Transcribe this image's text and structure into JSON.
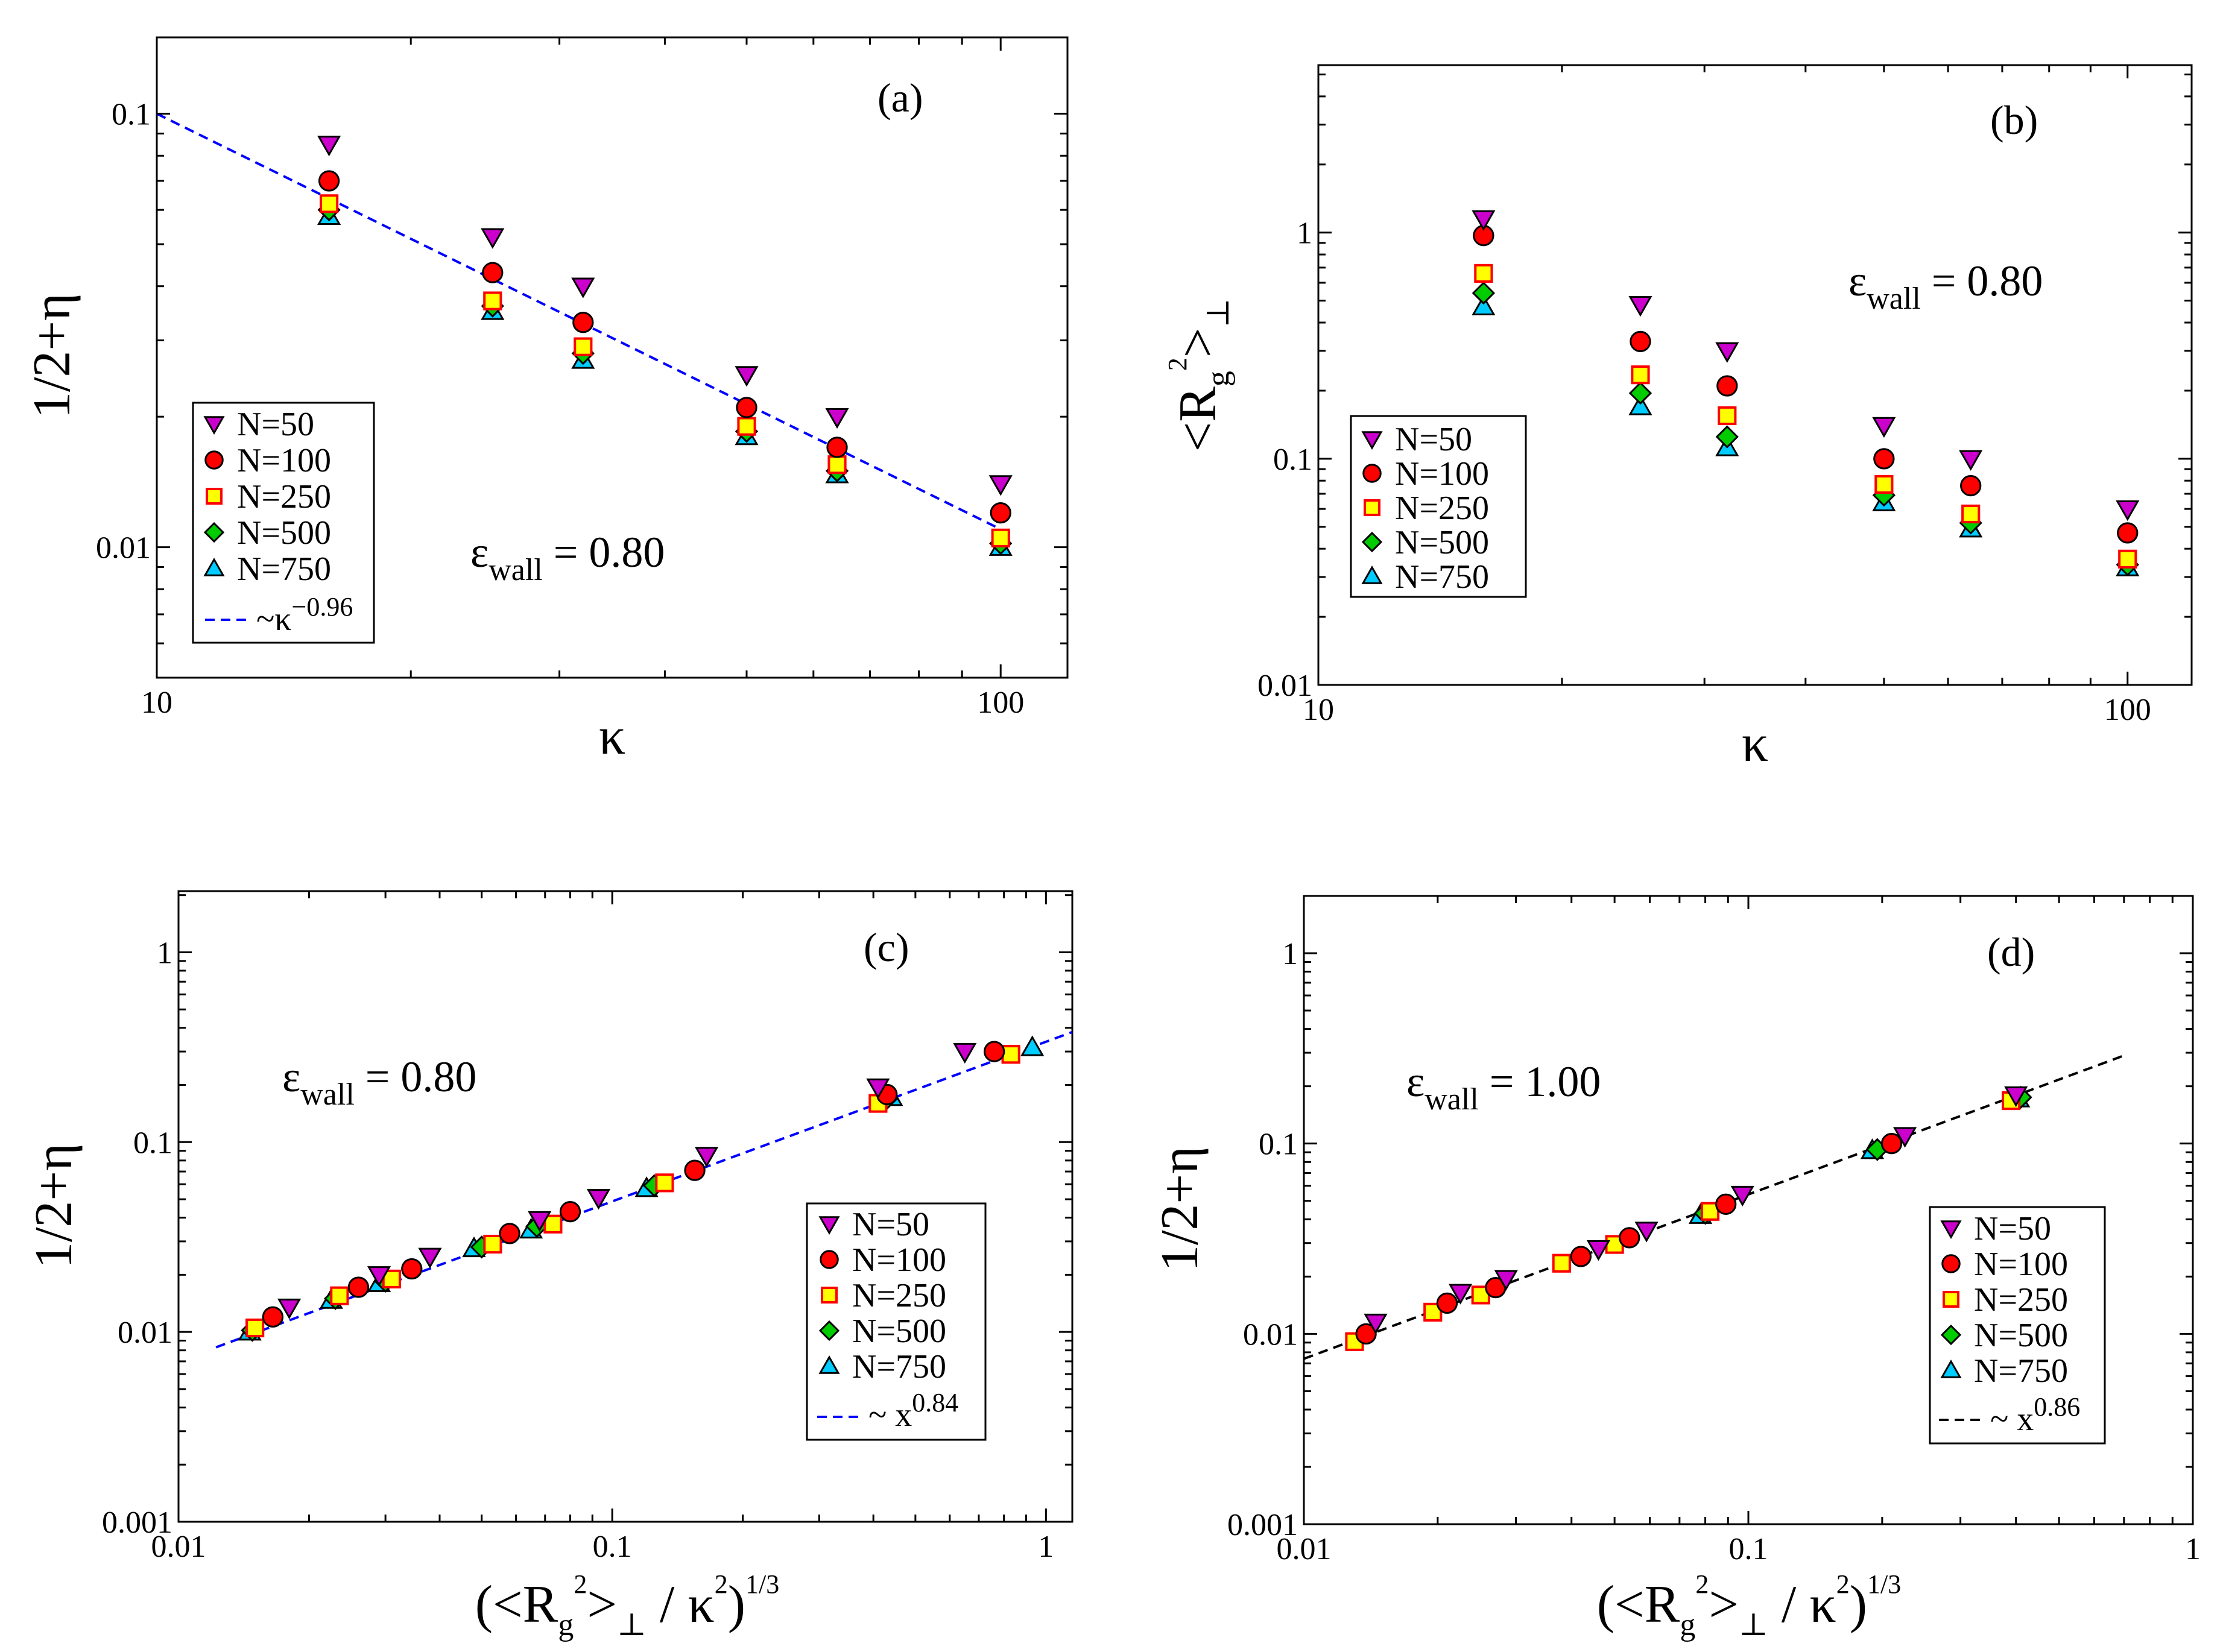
{
  "colors": {
    "N50": "#cc00cc",
    "N100": "#ff0000",
    "N250": "#ffff00",
    "N250_edge": "#ff0000",
    "N500": "#00cc00",
    "N750": "#00ccff",
    "fit_blue": "#0000ff",
    "fit_black": "#000000"
  },
  "chart_data": [
    {
      "panel": "(a)",
      "type": "scatter",
      "xscale": "log",
      "yscale": "log",
      "xlim": [
        10,
        120
      ],
      "ylim": [
        0.005,
        0.15
      ],
      "xticks": [
        "10",
        "100"
      ],
      "yticks": [
        "0.1",
        "0.01"
      ],
      "ytick_values": [
        0.1,
        0.01
      ],
      "xtick_values": [
        10,
        100
      ],
      "xlabel": "κ",
      "ylabel": "1/2+η",
      "eps_text": {
        "base": "ε",
        "sub": "wall",
        "rest": " = 0.80"
      },
      "x": [
        16,
        25,
        32,
        50,
        64,
        100
      ],
      "series": [
        {
          "name": "N=50",
          "marker": "tri_down",
          "values": [
            0.085,
            0.052,
            0.04,
            0.025,
            0.02,
            0.014
          ]
        },
        {
          "name": "N=100",
          "marker": "circle",
          "values": [
            0.07,
            0.043,
            0.033,
            0.021,
            0.017,
            0.012
          ]
        },
        {
          "name": "N=250",
          "marker": "square",
          "values": [
            0.062,
            0.037,
            0.029,
            0.019,
            0.0155,
            0.0105
          ]
        },
        {
          "name": "N=500",
          "marker": "diamond",
          "values": [
            0.06,
            0.036,
            0.028,
            0.0185,
            0.015,
            0.0102
          ]
        },
        {
          "name": "N=750",
          "marker": "tri_up",
          "values": [
            0.058,
            0.035,
            0.027,
            0.018,
            0.0147,
            0.01
          ]
        }
      ],
      "fit": {
        "label_base": "~κ",
        "label_exp": "−0.96",
        "x": [
          10,
          100
        ],
        "y": [
          0.1,
          0.011
        ],
        "color": "fit_blue"
      }
    },
    {
      "panel": "(b)",
      "type": "scatter",
      "xscale": "log",
      "yscale": "log",
      "xlim": [
        10,
        120
      ],
      "ylim": [
        0.01,
        5.5
      ],
      "xticks": [
        "10",
        "100"
      ],
      "yticks": [
        "1",
        "0.1",
        "0.01"
      ],
      "ytick_values": [
        1,
        0.1,
        0.01
      ],
      "xtick_values": [
        10,
        100
      ],
      "xlabel": "κ",
      "ylabel": {
        "open": "<R",
        "sub": "g",
        "sup": "2",
        "close": ">",
        "sub2": "⊥"
      },
      "eps_text": {
        "base": "ε",
        "sub": "wall",
        "rest": " = 0.80"
      },
      "x": [
        16,
        25,
        32,
        50,
        64,
        100
      ],
      "series": [
        {
          "name": "N=50",
          "marker": "tri_down",
          "values": [
            1.15,
            0.48,
            0.3,
            0.14,
            0.1,
            0.06
          ]
        },
        {
          "name": "N=100",
          "marker": "circle",
          "values": [
            0.97,
            0.33,
            0.21,
            0.1,
            0.076,
            0.047
          ]
        },
        {
          "name": "N=250",
          "marker": "square",
          "values": [
            0.66,
            0.235,
            0.155,
            0.077,
            0.057,
            0.036
          ]
        },
        {
          "name": "N=500",
          "marker": "diamond",
          "values": [
            0.54,
            0.195,
            0.125,
            0.069,
            0.052,
            0.034
          ]
        },
        {
          "name": "N=750",
          "marker": "tri_up",
          "values": [
            0.47,
            0.17,
            0.112,
            0.064,
            0.049,
            0.033
          ]
        }
      ]
    },
    {
      "panel": "(c)",
      "type": "scatter",
      "xscale": "log",
      "yscale": "log",
      "xlim": [
        0.01,
        1.15
      ],
      "ylim": [
        0.001,
        2.1
      ],
      "xticks": [
        "0.01",
        "0.1",
        "1"
      ],
      "yticks": [
        "1",
        "0.1",
        "0.01",
        "0.001"
      ],
      "ytick_values": [
        1,
        0.1,
        0.01,
        0.001
      ],
      "xtick_values": [
        0.01,
        0.1,
        1
      ],
      "xlabel": {
        "open": "(<R",
        "sub": "g",
        "sup": "2",
        "mid": ">",
        "sub2": "⊥",
        "mid2": " / κ",
        "sup2": "2",
        "close": ")",
        "sup3": "1/3"
      },
      "ylabel": "1/2+η",
      "eps_text": {
        "base": "ε",
        "sub": "wall",
        "rest": " = 0.80"
      },
      "series": [
        {
          "name": "N=50",
          "marker": "tri_down",
          "x": [
            0.018,
            0.029,
            0.038,
            0.068,
            0.093,
            0.165,
            0.41,
            0.65
          ],
          "values": [
            0.0135,
            0.02,
            0.025,
            0.039,
            0.051,
            0.085,
            0.195,
            0.3
          ]
        },
        {
          "name": "N=100",
          "marker": "circle",
          "x": [
            0.0165,
            0.026,
            0.0345,
            0.058,
            0.08,
            0.155,
            0.43,
            0.76
          ],
          "values": [
            0.012,
            0.0172,
            0.0215,
            0.033,
            0.043,
            0.071,
            0.178,
            0.3
          ]
        },
        {
          "name": "N=250",
          "marker": "square",
          "x": [
            0.015,
            0.0235,
            0.031,
            0.053,
            0.073,
            0.132,
            0.41,
            0.83
          ],
          "values": [
            0.0105,
            0.0155,
            0.019,
            0.029,
            0.037,
            0.061,
            0.16,
            0.29
          ]
        },
        {
          "name": "N=500",
          "marker": "diamond",
          "x": [
            0.0148,
            0.023,
            0.03,
            0.05,
            0.067,
            0.125,
            0.43
          ],
          "values": [
            0.0102,
            0.015,
            0.0185,
            0.028,
            0.036,
            0.059,
            0.17
          ]
        },
        {
          "name": "N=750",
          "marker": "tri_up",
          "x": [
            0.0146,
            0.0225,
            0.029,
            0.048,
            0.065,
            0.12,
            0.44,
            0.93
          ],
          "values": [
            0.01,
            0.0147,
            0.018,
            0.0275,
            0.0345,
            0.057,
            0.172,
            0.315
          ]
        }
      ],
      "fit": {
        "label_base": "~ x",
        "label_exp": "0.84",
        "x": [
          0.0122,
          1.15
        ],
        "y": [
          0.0083,
          0.38
        ],
        "color": "fit_blue"
      }
    },
    {
      "panel": "(d)",
      "type": "scatter",
      "xscale": "log",
      "yscale": "log",
      "xlim": [
        0.01,
        1.0
      ],
      "ylim": [
        0.001,
        2.0
      ],
      "xticks": [
        "0.01",
        "0.1",
        "1"
      ],
      "yticks": [
        "1",
        "0.1",
        "0.01",
        "0.001"
      ],
      "ytick_values": [
        1,
        0.1,
        0.01,
        0.001
      ],
      "xtick_values": [
        0.01,
        0.1,
        1
      ],
      "xlabel": {
        "open": "(<R",
        "sub": "g",
        "sup": "2",
        "mid": ">",
        "sub2": "⊥",
        "mid2": " / κ",
        "sup2": "2",
        "close": ")",
        "sup3": "1/3"
      },
      "ylabel": "1/2+η",
      "eps_text": {
        "base": "ε",
        "sub": "wall",
        "rest": " = 1.00"
      },
      "series": [
        {
          "name": "N=50",
          "marker": "tri_down",
          "x": [
            0.0145,
            0.0225,
            0.0285,
            0.046,
            0.059,
            0.097,
            0.225,
            0.4
          ],
          "values": [
            0.0115,
            0.0165,
            0.0195,
            0.028,
            0.035,
            0.054,
            0.11,
            0.18
          ]
        },
        {
          "name": "N=100",
          "marker": "circle",
          "x": [
            0.0138,
            0.021,
            0.027,
            0.042,
            0.054,
            0.089,
            0.21
          ],
          "values": [
            0.01,
            0.0145,
            0.0175,
            0.0255,
            0.032,
            0.048,
            0.1
          ]
        },
        {
          "name": "N=250",
          "marker": "square",
          "x": [
            0.013,
            0.0195,
            0.025,
            0.038,
            0.05,
            0.082,
            0.39
          ],
          "values": [
            0.0091,
            0.013,
            0.016,
            0.0235,
            0.0295,
            0.044,
            0.168
          ]
        },
        {
          "name": "N=500",
          "marker": "diamond",
          "x": [
            0.08,
            0.195,
            0.41
          ],
          "values": [
            0.043,
            0.093,
            0.175
          ]
        },
        {
          "name": "N=750",
          "marker": "tri_up",
          "x": [
            0.078,
            0.19,
            0.405
          ],
          "values": [
            0.042,
            0.092,
            0.172
          ]
        }
      ],
      "fit": {
        "label_base": "~ x",
        "label_exp": "0.86",
        "x": [
          0.01,
          0.7
        ],
        "y": [
          0.0074,
          0.29
        ],
        "color": "fit_black"
      }
    }
  ]
}
